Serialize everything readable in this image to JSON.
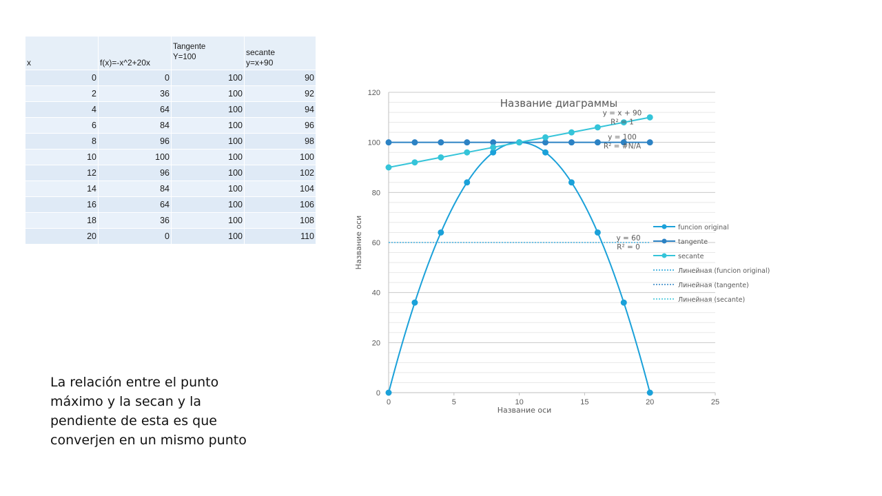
{
  "table": {
    "headers": [
      "x",
      "f(x)=-x^2+20x",
      "Tangente\nY=100",
      "secante\ny=x+90"
    ],
    "rows": [
      [
        "0",
        "0",
        "100",
        "90"
      ],
      [
        "2",
        "36",
        "100",
        "92"
      ],
      [
        "4",
        "64",
        "100",
        "94"
      ],
      [
        "6",
        "84",
        "100",
        "96"
      ],
      [
        "8",
        "96",
        "100",
        "98"
      ],
      [
        "10",
        "100",
        "100",
        "100"
      ],
      [
        "12",
        "96",
        "100",
        "102"
      ],
      [
        "14",
        "84",
        "100",
        "104"
      ],
      [
        "16",
        "64",
        "100",
        "106"
      ],
      [
        "18",
        "36",
        "100",
        "108"
      ],
      [
        "20",
        "0",
        "100",
        "110"
      ]
    ]
  },
  "note": "La relación entre el punto máximo y la secan y la pendiente de esta es que converjen en un mismo punto",
  "chart_data": {
    "type": "scatter",
    "title": "Название диаграммы",
    "xlabel": "Название оси",
    "ylabel": "Название оси",
    "xlim": [
      0,
      25
    ],
    "ylim": [
      0,
      120
    ],
    "xticks": [
      0,
      5,
      10,
      15,
      20,
      25
    ],
    "yticks": [
      0,
      20,
      40,
      60,
      80,
      100,
      120
    ],
    "grid": true,
    "legend_position": "right",
    "x": [
      0,
      2,
      4,
      6,
      8,
      10,
      12,
      14,
      16,
      18,
      20
    ],
    "series": [
      {
        "name": "funcion original",
        "values": [
          0,
          36,
          64,
          84,
          96,
          100,
          96,
          84,
          64,
          36,
          0
        ],
        "color": "#1ba1d9",
        "smooth": true
      },
      {
        "name": "tangente",
        "values": [
          100,
          100,
          100,
          100,
          100,
          100,
          100,
          100,
          100,
          100,
          100
        ],
        "color": "#2c82c4"
      },
      {
        "name": "secante",
        "values": [
          90,
          92,
          94,
          96,
          98,
          100,
          102,
          104,
          106,
          108,
          110
        ],
        "color": "#35c4d9"
      }
    ],
    "trendlines": [
      {
        "name": "Линейная (funcion original)",
        "equation": "y = 60",
        "r2": "R² = 0",
        "value": 60,
        "color": "#1ba1d9"
      },
      {
        "name": "Линейная (tangente)",
        "equation": "y = 100",
        "r2": "R² = #N/A",
        "value": 100,
        "color": "#2c82c4"
      },
      {
        "name": "Линейная (secante)",
        "equation": "y = x + 90",
        "r2": "R² = 1",
        "color": "#35c4d9"
      }
    ]
  }
}
